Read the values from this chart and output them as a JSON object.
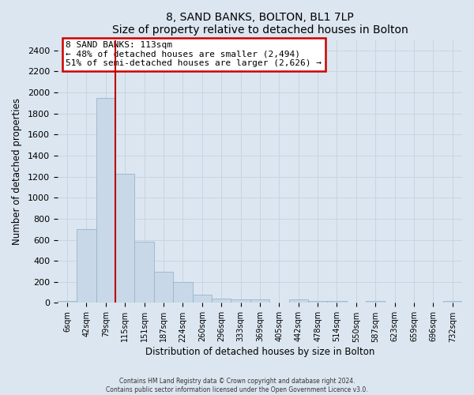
{
  "title": "8, SAND BANKS, BOLTON, BL1 7LP",
  "subtitle": "Size of property relative to detached houses in Bolton",
  "xlabel": "Distribution of detached houses by size in Bolton",
  "ylabel": "Number of detached properties",
  "bar_labels": [
    "6sqm",
    "42sqm",
    "79sqm",
    "115sqm",
    "151sqm",
    "187sqm",
    "224sqm",
    "260sqm",
    "296sqm",
    "333sqm",
    "369sqm",
    "405sqm",
    "442sqm",
    "478sqm",
    "514sqm",
    "550sqm",
    "587sqm",
    "623sqm",
    "659sqm",
    "696sqm",
    "732sqm"
  ],
  "bar_values": [
    15,
    700,
    1950,
    1230,
    580,
    300,
    200,
    80,
    40,
    30,
    30,
    5,
    30,
    15,
    15,
    5,
    15,
    5,
    5,
    5,
    15
  ],
  "bar_color": "#c8d8e8",
  "bar_edgecolor": "#9ab4cc",
  "vline_x": 3,
  "vline_color": "#bb0000",
  "annotation_title": "8 SAND BANKS: 113sqm",
  "annotation_line1": "← 48% of detached houses are smaller (2,494)",
  "annotation_line2": "51% of semi-detached houses are larger (2,626) →",
  "annotation_box_facecolor": "#ffffff",
  "annotation_box_edgecolor": "#cc0000",
  "ylim": [
    0,
    2500
  ],
  "yticks": [
    0,
    200,
    400,
    600,
    800,
    1000,
    1200,
    1400,
    1600,
    1800,
    2000,
    2200,
    2400
  ],
  "grid_color": "#c8d4e0",
  "bg_color": "#dce6f0",
  "plot_bg_color": "#dce6f0",
  "footer1": "Contains HM Land Registry data © Crown copyright and database right 2024.",
  "footer2": "Contains public sector information licensed under the Open Government Licence v3.0."
}
